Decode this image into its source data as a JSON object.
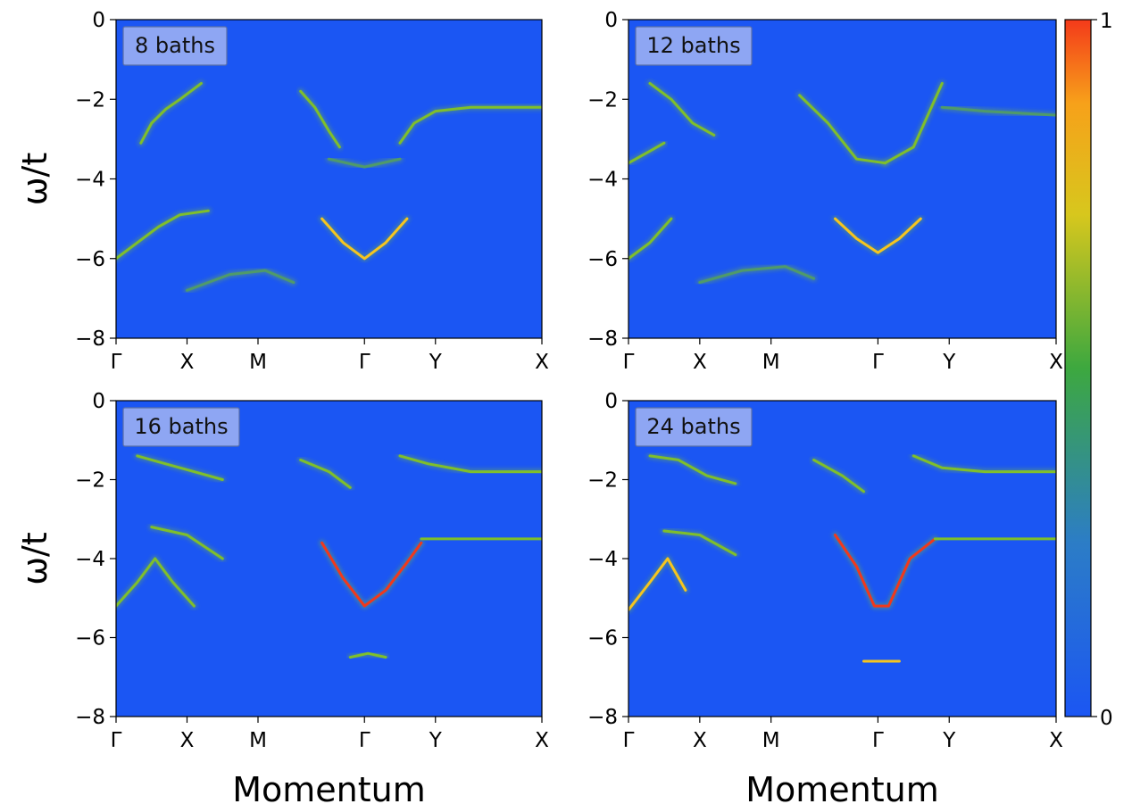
{
  "chart_data": {
    "type": "heatmap",
    "ylabel": "ω/t",
    "xlabel": "Momentum",
    "ylim": [
      -8,
      0
    ],
    "yticks": [
      "0",
      "−2",
      "−4",
      "−6",
      "−8"
    ],
    "xticks": [
      "Γ",
      "X",
      "M",
      "Γ",
      "Y",
      "X"
    ],
    "panels": [
      {
        "label": "8 baths",
        "bands": [
          {
            "k": [
              0.35,
              0.5,
              0.7,
              0.9,
              1.2
            ],
            "w": [
              -3.1,
              -2.6,
              -2.25,
              -2.0,
              -1.6
            ],
            "i": 0.45
          },
          {
            "k": [
              2.6,
              2.8,
              3.0,
              3.15
            ],
            "w": [
              -1.8,
              -2.2,
              -2.8,
              -3.2
            ],
            "i": 0.5
          },
          {
            "k": [
              4.0,
              4.2,
              4.5,
              5.0,
              5.5,
              6.0
            ],
            "w": [
              -3.1,
              -2.6,
              -2.3,
              -2.2,
              -2.2,
              -2.2
            ],
            "i": 0.45
          },
          {
            "k": [
              0.0,
              0.3,
              0.6,
              0.9,
              1.3
            ],
            "w": [
              -6.0,
              -5.6,
              -5.2,
              -4.9,
              -4.8
            ],
            "i": 0.55
          },
          {
            "k": [
              2.9,
              3.2,
              3.5,
              3.8,
              4.1
            ],
            "w": [
              -5.0,
              -5.6,
              -6.0,
              -5.6,
              -5.0
            ],
            "i": 0.75
          },
          {
            "k": [
              3.0,
              3.5,
              4.0
            ],
            "w": [
              -3.5,
              -3.7,
              -3.5
            ],
            "i": 0.3
          },
          {
            "k": [
              1.0,
              1.6,
              2.1,
              2.5
            ],
            "w": [
              -6.8,
              -6.4,
              -6.3,
              -6.6
            ],
            "i": 0.2
          }
        ]
      },
      {
        "label": "12 baths",
        "bands": [
          {
            "k": [
              0.3,
              0.6,
              0.9,
              1.2
            ],
            "w": [
              -1.6,
              -2.0,
              -2.6,
              -2.9
            ],
            "i": 0.35
          },
          {
            "k": [
              0.0,
              0.3,
              0.5
            ],
            "w": [
              -3.6,
              -3.3,
              -3.1
            ],
            "i": 0.35
          },
          {
            "k": [
              2.4,
              2.8,
              3.2,
              3.6
            ],
            "w": [
              -1.9,
              -2.6,
              -3.5,
              -3.6
            ],
            "i": 0.4
          },
          {
            "k": [
              3.6,
              4.0,
              4.4
            ],
            "w": [
              -3.6,
              -3.2,
              -1.6
            ],
            "i": 0.35
          },
          {
            "k": [
              4.4,
              5.0,
              6.0
            ],
            "w": [
              -2.2,
              -2.3,
              -2.4
            ],
            "i": 0.3
          },
          {
            "k": [
              0.0,
              0.3,
              0.6
            ],
            "w": [
              -6.0,
              -5.6,
              -5.0
            ],
            "i": 0.55
          },
          {
            "k": [
              2.9,
              3.2,
              3.5,
              3.8,
              4.1
            ],
            "w": [
              -5.0,
              -5.5,
              -5.85,
              -5.5,
              -5.0
            ],
            "i": 0.8
          },
          {
            "k": [
              1.0,
              1.6,
              2.2,
              2.6
            ],
            "w": [
              -6.6,
              -6.3,
              -6.2,
              -6.5
            ],
            "i": 0.2
          }
        ]
      },
      {
        "label": "16 baths",
        "bands": [
          {
            "k": [
              0.3,
              0.7,
              1.1,
              1.5
            ],
            "w": [
              -1.4,
              -1.6,
              -1.8,
              -2.0
            ],
            "i": 0.4
          },
          {
            "k": [
              2.6,
              3.0,
              3.3
            ],
            "w": [
              -1.5,
              -1.8,
              -2.2
            ],
            "i": 0.35
          },
          {
            "k": [
              4.0,
              4.4,
              5.0,
              6.0
            ],
            "w": [
              -1.4,
              -1.6,
              -1.8,
              -1.8
            ],
            "i": 0.45
          },
          {
            "k": [
              0.5,
              1.0,
              1.5
            ],
            "w": [
              -3.2,
              -3.4,
              -4.0
            ],
            "i": 0.4
          },
          {
            "k": [
              0.0,
              0.3,
              0.55,
              0.8,
              1.1
            ],
            "w": [
              -5.2,
              -4.6,
              -4.0,
              -4.6,
              -5.2
            ],
            "i": 0.55
          },
          {
            "k": [
              2.9,
              3.2,
              3.5,
              3.8,
              4.1,
              4.3
            ],
            "w": [
              -3.6,
              -4.5,
              -5.2,
              -4.8,
              -4.1,
              -3.6
            ],
            "i": 0.85
          },
          {
            "k": [
              4.3,
              5.0,
              6.0
            ],
            "w": [
              -3.5,
              -3.5,
              -3.5
            ],
            "i": 0.4
          },
          {
            "k": [
              3.3,
              3.55,
              3.8
            ],
            "w": [
              -6.5,
              -6.4,
              -6.5
            ],
            "i": 0.4
          }
        ]
      },
      {
        "label": "24 baths",
        "bands": [
          {
            "k": [
              0.3,
              0.7,
              1.1,
              1.5
            ],
            "w": [
              -1.4,
              -1.5,
              -1.9,
              -2.1
            ],
            "i": 0.45
          },
          {
            "k": [
              2.6,
              3.0,
              3.3
            ],
            "w": [
              -1.5,
              -1.9,
              -2.3
            ],
            "i": 0.4
          },
          {
            "k": [
              4.0,
              4.4,
              5.0,
              6.0
            ],
            "w": [
              -1.4,
              -1.7,
              -1.8,
              -1.8
            ],
            "i": 0.5
          },
          {
            "k": [
              0.5,
              1.0,
              1.5
            ],
            "w": [
              -3.3,
              -3.4,
              -3.9
            ],
            "i": 0.4
          },
          {
            "k": [
              0.0,
              0.3,
              0.55,
              0.8
            ],
            "w": [
              -5.3,
              -4.6,
              -4.0,
              -4.8
            ],
            "i": 0.7
          },
          {
            "k": [
              2.9,
              3.2,
              3.45,
              3.65,
              3.95,
              4.3
            ],
            "w": [
              -3.4,
              -4.2,
              -5.2,
              -5.2,
              -4.0,
              -3.5
            ],
            "i": 0.95
          },
          {
            "k": [
              4.3,
              5.0,
              6.0
            ],
            "w": [
              -3.5,
              -3.5,
              -3.5
            ],
            "i": 0.45
          },
          {
            "k": [
              3.3,
              3.55,
              3.8
            ],
            "w": [
              -6.6,
              -6.6,
              -6.6
            ],
            "i": 0.6
          }
        ]
      }
    ],
    "colorbar": {
      "min": 0,
      "max": 1,
      "min_label": "0",
      "max_label": "1"
    }
  },
  "colors": {
    "background": "#1b56f3",
    "badge": "#8ea6f3",
    "low": "#1b56f3",
    "mid": "#7fbf2b",
    "high": "#f6c51f",
    "peak": "#f1381c"
  }
}
